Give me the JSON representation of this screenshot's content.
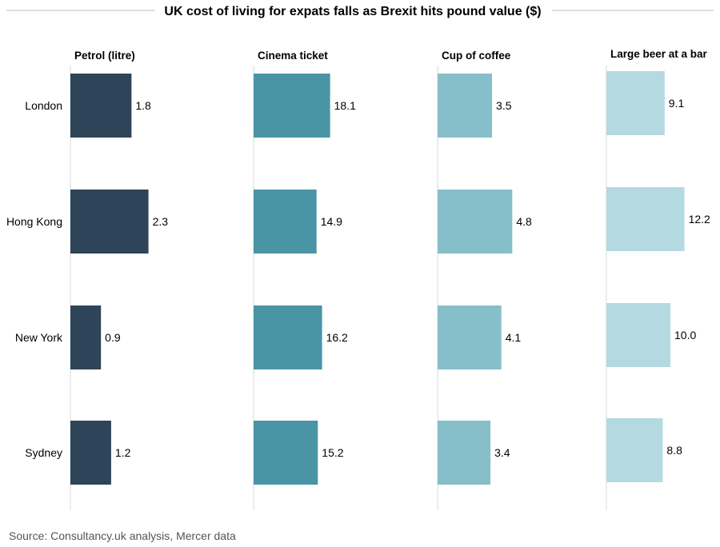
{
  "chart_data": {
    "type": "bar",
    "orientation": "horizontal",
    "title": "UK cost of living for expats falls as Brexit hits pound value ($)",
    "categories": [
      "London",
      "Hong Kong",
      "New York",
      "Sydney"
    ],
    "panels": [
      {
        "name": "Petrol (litre)",
        "values": [
          1.8,
          2.3,
          0.9,
          1.2
        ],
        "labels": [
          "1.8",
          "2.3",
          "0.9",
          "1.2"
        ],
        "xlim": [
          0,
          3.3
        ],
        "color": "#2e4458"
      },
      {
        "name": "Cinema ticket",
        "values": [
          18.1,
          14.9,
          16.2,
          15.2
        ],
        "labels": [
          "18.1",
          "14.9",
          "16.2",
          "15.2"
        ],
        "xlim": [
          0,
          26.5
        ],
        "color": "#4a95a5"
      },
      {
        "name": "Cup of coffee",
        "values": [
          3.5,
          4.8,
          4.1,
          3.4
        ],
        "labels": [
          "3.5",
          "4.8",
          "4.1",
          "3.4"
        ],
        "xlim": [
          0,
          7.2
        ],
        "color": "#86bfca"
      },
      {
        "name": "Large beer at a bar",
        "values": [
          9.1,
          12.2,
          10.0,
          8.8
        ],
        "labels": [
          "9.1",
          "12.2",
          "10.0",
          "8.8"
        ],
        "xlim": [
          0,
          17.5
        ],
        "color": "#b4d9e1"
      }
    ]
  },
  "source": "Source: Consultancy.uk analysis, Mercer data"
}
